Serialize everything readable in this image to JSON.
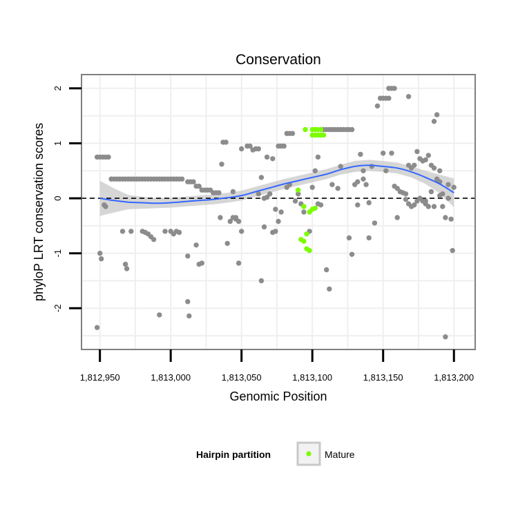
{
  "chart_data": {
    "type": "scatter",
    "title": "Conservation",
    "xlabel": "Genomic Position",
    "ylabel": "phyloP LRT conservation scores",
    "xlim": [
      1812937,
      1813215
    ],
    "ylim": [
      -2.75,
      2.25
    ],
    "x_ticks": [
      1812950,
      1813000,
      1813050,
      1813100,
      1813150,
      1813200
    ],
    "x_tick_labels": [
      "1,812,950",
      "1,813,000",
      "1,813,050",
      "1,813,100",
      "1,813,150",
      "1,813,200"
    ],
    "y_ticks": [
      -2,
      -1,
      0,
      1,
      2
    ],
    "y_tick_labels": [
      "-2",
      "-1",
      "0",
      "1",
      "2"
    ],
    "grid": true,
    "reference_line": {
      "y": 0,
      "style": "dashed",
      "color": "#000000"
    },
    "legend": {
      "title": "Hairpin partition",
      "position": "bottom",
      "entries": [
        {
          "label": "Mature",
          "color": "#7cfc00"
        }
      ]
    },
    "colors": {
      "other": "#8c8c8c",
      "mature": "#7cfc00",
      "smooth": "#3366ff",
      "band": "#c8c8c8"
    },
    "series": [
      {
        "name": "Other",
        "points": [
          [
            1812948,
            -2.35
          ],
          [
            1812950,
            -1.0
          ],
          [
            1812951,
            -1.1
          ],
          [
            1812953,
            -0.12
          ],
          [
            1812954,
            -0.15
          ],
          [
            1812948,
            0.75
          ],
          [
            1812950,
            0.75
          ],
          [
            1812952,
            0.75
          ],
          [
            1812954,
            0.75
          ],
          [
            1812956,
            0.75
          ],
          [
            1812958,
            0.35
          ],
          [
            1812960,
            0.35
          ],
          [
            1812962,
            0.35
          ],
          [
            1812964,
            0.35
          ],
          [
            1812966,
            0.35
          ],
          [
            1812968,
            0.35
          ],
          [
            1812970,
            0.35
          ],
          [
            1812972,
            0.35
          ],
          [
            1812974,
            0.35
          ],
          [
            1812976,
            0.35
          ],
          [
            1812978,
            0.35
          ],
          [
            1812980,
            0.35
          ],
          [
            1812982,
            0.35
          ],
          [
            1812984,
            0.35
          ],
          [
            1812986,
            0.35
          ],
          [
            1812988,
            0.35
          ],
          [
            1812990,
            0.35
          ],
          [
            1812992,
            0.35
          ],
          [
            1812994,
            0.35
          ],
          [
            1812996,
            0.35
          ],
          [
            1812998,
            0.35
          ],
          [
            1813000,
            0.35
          ],
          [
            1813002,
            0.35
          ],
          [
            1813004,
            0.35
          ],
          [
            1813006,
            0.35
          ],
          [
            1813008,
            0.35
          ],
          [
            1813012,
            0.3
          ],
          [
            1813014,
            0.3
          ],
          [
            1813016,
            0.3
          ],
          [
            1813018,
            0.22
          ],
          [
            1813020,
            0.22
          ],
          [
            1813022,
            0.15
          ],
          [
            1813024,
            0.15
          ],
          [
            1813026,
            0.15
          ],
          [
            1813028,
            0.15
          ],
          [
            1813030,
            0.1
          ],
          [
            1813032,
            0.1
          ],
          [
            1813034,
            0.1
          ],
          [
            1812966,
            -0.6
          ],
          [
            1812972,
            -0.6
          ],
          [
            1812980,
            -0.6
          ],
          [
            1812982,
            -0.62
          ],
          [
            1812984,
            -0.65
          ],
          [
            1812986,
            -0.7
          ],
          [
            1812988,
            -0.75
          ],
          [
            1812996,
            -0.6
          ],
          [
            1813000,
            -0.6
          ],
          [
            1813002,
            -0.65
          ],
          [
            1813004,
            -0.6
          ],
          [
            1813006,
            -0.62
          ],
          [
            1812968,
            -1.2
          ],
          [
            1812969,
            -1.28
          ],
          [
            1812992,
            -2.12
          ],
          [
            1813012,
            -1.05
          ],
          [
            1813018,
            -0.85
          ],
          [
            1813020,
            -1.2
          ],
          [
            1813022,
            -1.18
          ],
          [
            1813012,
            -1.88
          ],
          [
            1813013,
            -2.14
          ],
          [
            1813036,
            0.62
          ],
          [
            1813037,
            1.02
          ],
          [
            1813039,
            1.02
          ],
          [
            1813035,
            -0.35
          ],
          [
            1813040,
            -0.82
          ],
          [
            1813042,
            -0.42
          ],
          [
            1813044,
            -0.35
          ],
          [
            1813046,
            -0.35
          ],
          [
            1813048,
            -0.42
          ],
          [
            1813044,
            0.12
          ],
          [
            1813050,
            0.9
          ],
          [
            1813054,
            0.95
          ],
          [
            1813056,
            0.95
          ],
          [
            1813058,
            0.88
          ],
          [
            1813060,
            0.9
          ],
          [
            1813062,
            0.9
          ],
          [
            1813064,
            0.38
          ],
          [
            1813066,
            -0.52
          ],
          [
            1813048,
            -1.18
          ],
          [
            1813064,
            -1.5
          ],
          [
            1813062,
            0.08
          ],
          [
            1813066,
            0.0
          ],
          [
            1813068,
            0.02
          ],
          [
            1813070,
            0.08
          ],
          [
            1813072,
            -0.62
          ],
          [
            1813074,
            -0.6
          ],
          [
            1813068,
            0.75
          ],
          [
            1813072,
            0.72
          ],
          [
            1813074,
            -0.2
          ],
          [
            1813076,
            0.95
          ],
          [
            1813078,
            0.95
          ],
          [
            1813080,
            0.95
          ],
          [
            1813082,
            1.18
          ],
          [
            1813084,
            1.18
          ],
          [
            1813086,
            1.18
          ],
          [
            1813076,
            -0.42
          ],
          [
            1813078,
            -0.25
          ],
          [
            1813082,
            0.2
          ],
          [
            1813084,
            0.25
          ],
          [
            1813088,
            -0.05
          ],
          [
            1813090,
            0.08
          ],
          [
            1813092,
            -0.1
          ],
          [
            1813094,
            -0.25
          ],
          [
            1813098,
            -0.6
          ],
          [
            1813100,
            0.2
          ],
          [
            1813102,
            0.5
          ],
          [
            1813104,
            0.75
          ],
          [
            1813106,
            -0.12
          ],
          [
            1813108,
            1.25
          ],
          [
            1813110,
            1.25
          ],
          [
            1813112,
            1.25
          ],
          [
            1813114,
            1.25
          ],
          [
            1813116,
            1.25
          ],
          [
            1813118,
            1.25
          ],
          [
            1813120,
            1.25
          ],
          [
            1813122,
            1.25
          ],
          [
            1813124,
            1.25
          ],
          [
            1813126,
            1.25
          ],
          [
            1813128,
            1.25
          ],
          [
            1813110,
            -1.3
          ],
          [
            1813112,
            -1.65
          ],
          [
            1813114,
            0.25
          ],
          [
            1813118,
            0.18
          ],
          [
            1813126,
            -0.72
          ],
          [
            1813128,
            -1.02
          ],
          [
            1813130,
            0.25
          ],
          [
            1813132,
            0.3
          ],
          [
            1813132,
            -0.12
          ],
          [
            1813134,
            0.8
          ],
          [
            1813136,
            0.5
          ],
          [
            1813136,
            0.35
          ],
          [
            1813138,
            0.25
          ],
          [
            1813140,
            -0.08
          ],
          [
            1813140,
            -0.72
          ],
          [
            1813142,
            0.58
          ],
          [
            1813144,
            -0.45
          ],
          [
            1813146,
            1.68
          ],
          [
            1813148,
            1.82
          ],
          [
            1813150,
            1.82
          ],
          [
            1813152,
            1.82
          ],
          [
            1813154,
            1.82
          ],
          [
            1813154,
            2.0
          ],
          [
            1813156,
            2.0
          ],
          [
            1813158,
            2.0
          ],
          [
            1813150,
            0.82
          ],
          [
            1813156,
            0.82
          ],
          [
            1813152,
            0.5
          ],
          [
            1813158,
            0.22
          ],
          [
            1813160,
            0.18
          ],
          [
            1813162,
            0.12
          ],
          [
            1813164,
            0.1
          ],
          [
            1813166,
            0.08
          ],
          [
            1813168,
            0.6
          ],
          [
            1813170,
            0.55
          ],
          [
            1813172,
            0.6
          ],
          [
            1813174,
            0.85
          ],
          [
            1813176,
            0.72
          ],
          [
            1813178,
            0.68
          ],
          [
            1813180,
            0.7
          ],
          [
            1813182,
            0.78
          ],
          [
            1813184,
            0.6
          ],
          [
            1813186,
            0.55
          ],
          [
            1813166,
            -0.02
          ],
          [
            1813168,
            -0.1
          ],
          [
            1813170,
            -0.15
          ],
          [
            1813172,
            -0.12
          ],
          [
            1813174,
            -0.05
          ],
          [
            1813176,
            0.0
          ],
          [
            1813180,
            -0.1
          ],
          [
            1813182,
            -0.15
          ],
          [
            1813184,
            0.12
          ],
          [
            1813186,
            1.4
          ],
          [
            1813188,
            1.52
          ],
          [
            1813190,
            0.5
          ],
          [
            1813190,
            0.3
          ],
          [
            1813192,
            0.08
          ],
          [
            1813194,
            -0.35
          ],
          [
            1813196,
            0.25
          ],
          [
            1813198,
            -0.38
          ],
          [
            1813199,
            -0.95
          ],
          [
            1813200,
            0.2
          ],
          [
            1813194,
            -2.52
          ],
          [
            1813168,
            1.85
          ],
          [
            1813120,
            0.58
          ],
          [
            1813104,
            -0.1
          ],
          [
            1813196,
            0.0
          ],
          [
            1813160,
            -0.35
          ],
          [
            1813180,
            -0.05
          ],
          [
            1813186,
            -0.15
          ],
          [
            1813190,
            0.05
          ],
          [
            1813192,
            -0.15
          ],
          [
            1813188,
            0.35
          ],
          [
            1813178,
            -0.05
          ],
          [
            1813046,
            -0.38
          ],
          [
            1813050,
            -0.6
          ]
        ]
      },
      {
        "name": "Mature",
        "points": [
          [
            1813095,
            1.25
          ],
          [
            1813100,
            1.25
          ],
          [
            1813102,
            1.25
          ],
          [
            1813104,
            1.25
          ],
          [
            1813106,
            1.25
          ],
          [
            1813100,
            1.15
          ],
          [
            1813102,
            1.15
          ],
          [
            1813104,
            1.15
          ],
          [
            1813106,
            1.15
          ],
          [
            1813108,
            1.15
          ],
          [
            1813090,
            0.15
          ],
          [
            1813094,
            -0.15
          ],
          [
            1813098,
            -0.25
          ],
          [
            1813100,
            -0.2
          ],
          [
            1813102,
            -0.18
          ],
          [
            1813092,
            -0.75
          ],
          [
            1813094,
            -0.78
          ],
          [
            1813096,
            -0.65
          ],
          [
            1813096,
            -0.92
          ],
          [
            1813098,
            -0.95
          ]
        ]
      }
    ],
    "smooth": {
      "x": [
        1812950,
        1812960,
        1812970,
        1812980,
        1812990,
        1813000,
        1813010,
        1813020,
        1813030,
        1813040,
        1813050,
        1813060,
        1813070,
        1813080,
        1813090,
        1813100,
        1813110,
        1813120,
        1813130,
        1813140,
        1813150,
        1813160,
        1813170,
        1813180,
        1813190,
        1813200
      ],
      "y": [
        0.0,
        -0.04,
        -0.07,
        -0.08,
        -0.09,
        -0.08,
        -0.06,
        -0.04,
        -0.02,
        0.01,
        0.05,
        0.12,
        0.19,
        0.26,
        0.32,
        0.38,
        0.44,
        0.52,
        0.58,
        0.6,
        0.58,
        0.55,
        0.48,
        0.38,
        0.26,
        0.1
      ],
      "se": [
        0.32,
        0.22,
        0.13,
        0.11,
        0.09,
        0.09,
        0.09,
        0.09,
        0.09,
        0.09,
        0.09,
        0.09,
        0.09,
        0.09,
        0.09,
        0.09,
        0.09,
        0.09,
        0.1,
        0.1,
        0.1,
        0.1,
        0.1,
        0.12,
        0.17,
        0.26
      ]
    }
  }
}
